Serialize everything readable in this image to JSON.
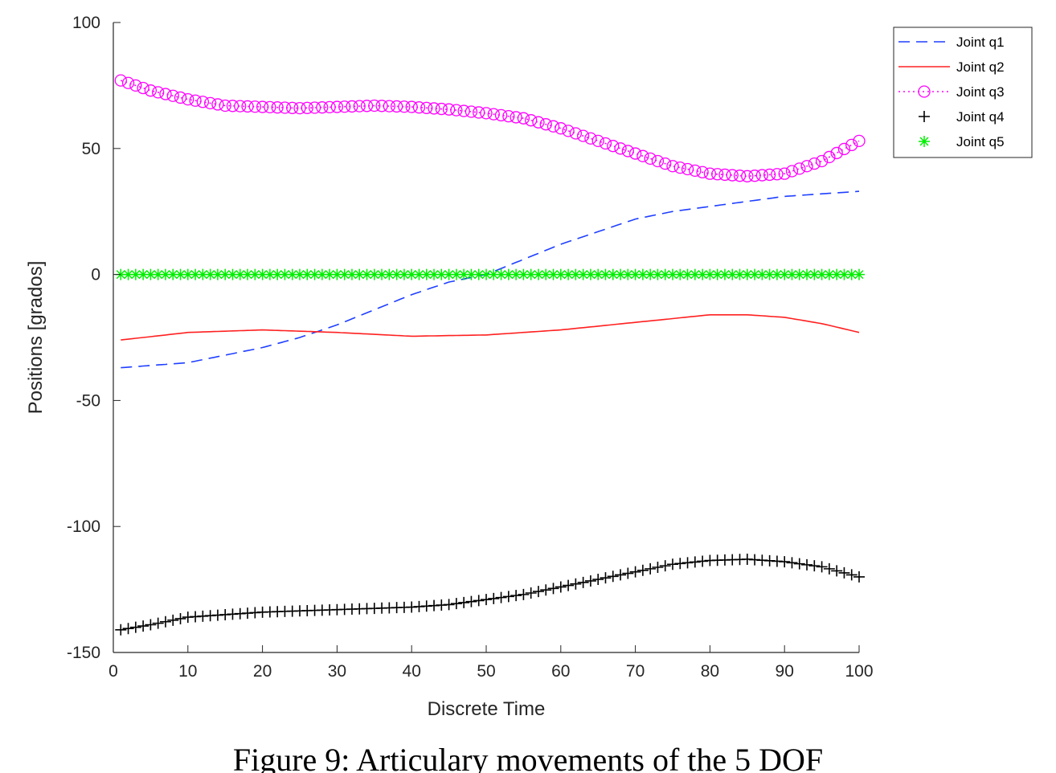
{
  "chart_data": {
    "type": "line",
    "title": "",
    "xlabel": "Discrete Time",
    "ylabel": "Positions [grados]",
    "xlim": [
      0,
      100
    ],
    "ylim": [
      -150,
      100
    ],
    "xticks": [
      0,
      10,
      20,
      30,
      40,
      50,
      60,
      70,
      80,
      90,
      100
    ],
    "yticks": [
      100,
      50,
      0,
      -50,
      -100,
      -150
    ],
    "grid": false,
    "legend_position": "outside top-right",
    "series": [
      {
        "name": "Joint q1",
        "color": "#1f3fff",
        "style": "dashed",
        "marker": "none",
        "points": [
          [
            1,
            -37
          ],
          [
            10,
            -35
          ],
          [
            20,
            -29
          ],
          [
            25,
            -25
          ],
          [
            30,
            -20
          ],
          [
            35,
            -14
          ],
          [
            40,
            -8
          ],
          [
            45,
            -3
          ],
          [
            50,
            0
          ],
          [
            55,
            6
          ],
          [
            60,
            12
          ],
          [
            65,
            17
          ],
          [
            70,
            22
          ],
          [
            75,
            25
          ],
          [
            80,
            27
          ],
          [
            85,
            29
          ],
          [
            90,
            31
          ],
          [
            95,
            32
          ],
          [
            100,
            33
          ]
        ]
      },
      {
        "name": "Joint q2",
        "color": "#ff2020",
        "style": "solid",
        "marker": "none",
        "points": [
          [
            1,
            -26
          ],
          [
            10,
            -23
          ],
          [
            20,
            -22
          ],
          [
            30,
            -23
          ],
          [
            40,
            -24.5
          ],
          [
            50,
            -24
          ],
          [
            60,
            -22
          ],
          [
            70,
            -19
          ],
          [
            80,
            -16
          ],
          [
            85,
            -16
          ],
          [
            90,
            -17
          ],
          [
            95,
            -19.5
          ],
          [
            100,
            -23
          ]
        ]
      },
      {
        "name": "Joint q3",
        "color": "#ff00ff",
        "style": "dotted",
        "marker": "circle",
        "points": [
          [
            1,
            77
          ],
          [
            5,
            73
          ],
          [
            10,
            69.5
          ],
          [
            15,
            67
          ],
          [
            20,
            66.5
          ],
          [
            25,
            66
          ],
          [
            30,
            66.5
          ],
          [
            35,
            67
          ],
          [
            40,
            66.5
          ],
          [
            45,
            65.5
          ],
          [
            50,
            64
          ],
          [
            55,
            62
          ],
          [
            60,
            58
          ],
          [
            65,
            53
          ],
          [
            70,
            48
          ],
          [
            75,
            43
          ],
          [
            80,
            40
          ],
          [
            85,
            39
          ],
          [
            90,
            40
          ],
          [
            95,
            45
          ],
          [
            100,
            53
          ]
        ]
      },
      {
        "name": "Joint q4",
        "color": "#000000",
        "style": "none",
        "marker": "plus",
        "points": [
          [
            1,
            -141
          ],
          [
            5,
            -139
          ],
          [
            10,
            -136
          ],
          [
            20,
            -134
          ],
          [
            30,
            -133
          ],
          [
            40,
            -132
          ],
          [
            45,
            -131
          ],
          [
            50,
            -129
          ],
          [
            55,
            -127
          ],
          [
            60,
            -124
          ],
          [
            65,
            -121
          ],
          [
            70,
            -118
          ],
          [
            75,
            -115
          ],
          [
            80,
            -113.5
          ],
          [
            85,
            -113
          ],
          [
            90,
            -114
          ],
          [
            95,
            -116
          ],
          [
            100,
            -120
          ]
        ]
      },
      {
        "name": "Joint q5",
        "color": "#00ee00",
        "style": "none",
        "marker": "asterisk",
        "points": [
          [
            1,
            0
          ],
          [
            100,
            0
          ]
        ]
      }
    ]
  },
  "caption": "Figure 9: Articulary movements of the 5 DOF"
}
